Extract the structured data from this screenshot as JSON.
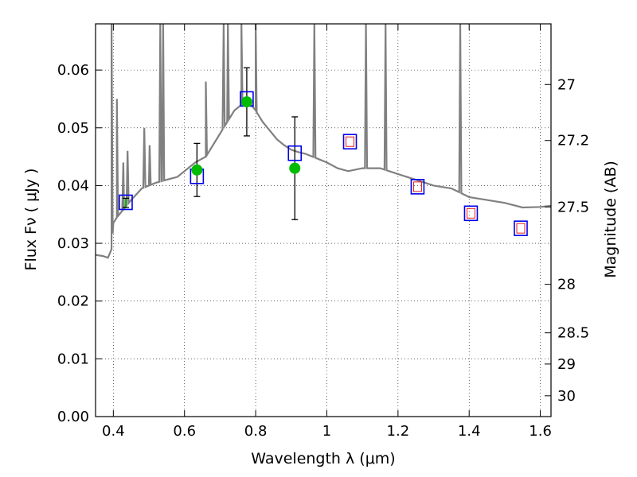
{
  "chart_data": {
    "type": "scatter",
    "title": "",
    "xlabel": "Wavelength  λ (μm)",
    "ylabel": "Flux  Fν  ( μJy )",
    "ylabel_right": "Magnitude (AB)",
    "xlim": [
      0.35,
      1.63
    ],
    "ylim": [
      0.0,
      0.068
    ],
    "grid": true,
    "colors": {
      "sed": "#808080",
      "photometry": "#00bb00",
      "model_box": "#0000ee",
      "inner_box": "#ee0000",
      "errorbar": "#000000"
    },
    "x_ticks": [
      0.4,
      0.6,
      0.8,
      1.0,
      1.2,
      1.4,
      1.6
    ],
    "x_tick_labels": [
      "0.4",
      "0.6",
      "0.8",
      "1",
      "1.2",
      "1.4",
      "1.6"
    ],
    "y_ticks": [
      0.0,
      0.01,
      0.02,
      0.03,
      0.04,
      0.05,
      0.06
    ],
    "y_tick_labels": [
      "0.00",
      "0.01",
      "0.02",
      "0.03",
      "0.04",
      "0.05",
      "0.06"
    ],
    "right_axis": {
      "ticks": [
        {
          "label": "27",
          "flux": 0.0575
        },
        {
          "label": "27.2",
          "flux": 0.0478
        },
        {
          "label": "27.5",
          "flux": 0.0363
        },
        {
          "label": "28",
          "flux": 0.0229
        },
        {
          "label": "28.5",
          "flux": 0.0145
        },
        {
          "label": "29",
          "flux": 0.0091
        },
        {
          "label": "30",
          "flux": 0.0036
        }
      ]
    },
    "sed_continuum": [
      [
        0.35,
        0.028
      ],
      [
        0.37,
        0.0278
      ],
      [
        0.385,
        0.0275
      ],
      [
        0.395,
        0.029
      ],
      [
        0.4,
        0.0335
      ],
      [
        0.41,
        0.0345
      ],
      [
        0.43,
        0.036
      ],
      [
        0.45,
        0.0375
      ],
      [
        0.48,
        0.0395
      ],
      [
        0.5,
        0.04
      ],
      [
        0.52,
        0.0405
      ],
      [
        0.55,
        0.041
      ],
      [
        0.58,
        0.0415
      ],
      [
        0.6,
        0.0425
      ],
      [
        0.63,
        0.044
      ],
      [
        0.66,
        0.045
      ],
      [
        0.7,
        0.049
      ],
      [
        0.72,
        0.051
      ],
      [
        0.74,
        0.053
      ],
      [
        0.76,
        0.054
      ],
      [
        0.78,
        0.0545
      ],
      [
        0.8,
        0.053
      ],
      [
        0.82,
        0.051
      ],
      [
        0.84,
        0.0495
      ],
      [
        0.86,
        0.048
      ],
      [
        0.88,
        0.047
      ],
      [
        0.9,
        0.0462
      ],
      [
        0.92,
        0.0458
      ],
      [
        0.94,
        0.0455
      ],
      [
        0.96,
        0.045
      ],
      [
        0.98,
        0.0445
      ],
      [
        1.0,
        0.044
      ],
      [
        1.03,
        0.043
      ],
      [
        1.06,
        0.0425
      ],
      [
        1.1,
        0.043
      ],
      [
        1.15,
        0.043
      ],
      [
        1.2,
        0.042
      ],
      [
        1.25,
        0.041
      ],
      [
        1.3,
        0.04
      ],
      [
        1.35,
        0.0395
      ],
      [
        1.4,
        0.038
      ],
      [
        1.45,
        0.0375
      ],
      [
        1.5,
        0.037
      ],
      [
        1.55,
        0.0362
      ],
      [
        1.6,
        0.0363
      ],
      [
        1.63,
        0.0365
      ]
    ],
    "sed_lines": [
      {
        "x": 0.395,
        "peak": 0.068
      },
      {
        "x": 0.41,
        "peak": 0.055
      },
      {
        "x": 0.428,
        "peak": 0.044
      },
      {
        "x": 0.44,
        "peak": 0.046
      },
      {
        "x": 0.487,
        "peak": 0.05
      },
      {
        "x": 0.502,
        "peak": 0.047
      },
      {
        "x": 0.532,
        "peak": 0.068
      },
      {
        "x": 0.54,
        "peak": 0.068
      },
      {
        "x": 0.66,
        "peak": 0.058
      },
      {
        "x": 0.71,
        "peak": 0.068
      },
      {
        "x": 0.722,
        "peak": 0.068
      },
      {
        "x": 0.76,
        "peak": 0.068
      },
      {
        "x": 0.8,
        "peak": 0.068
      },
      {
        "x": 0.965,
        "peak": 0.068
      },
      {
        "x": 1.11,
        "peak": 0.068
      },
      {
        "x": 1.165,
        "peak": 0.068
      },
      {
        "x": 1.375,
        "peak": 0.068
      }
    ],
    "photometry": [
      {
        "x": 0.435,
        "y": 0.037,
        "err": 0.0008
      },
      {
        "x": 0.635,
        "y": 0.0427,
        "err": 0.0046
      },
      {
        "x": 0.775,
        "y": 0.0545,
        "err": 0.0059
      },
      {
        "x": 0.91,
        "y": 0.043,
        "err": 0.0089
      }
    ],
    "model_points": [
      {
        "x": 0.435,
        "y": 0.0371,
        "inner": false
      },
      {
        "x": 0.635,
        "y": 0.0416,
        "inner": false
      },
      {
        "x": 0.775,
        "y": 0.055,
        "inner": false
      },
      {
        "x": 0.91,
        "y": 0.0456,
        "inner": false
      },
      {
        "x": 1.065,
        "y": 0.0476,
        "inner": true
      },
      {
        "x": 1.255,
        "y": 0.0398,
        "inner": true
      },
      {
        "x": 1.405,
        "y": 0.0352,
        "inner": true
      },
      {
        "x": 1.545,
        "y": 0.0326,
        "inner": true
      }
    ]
  }
}
